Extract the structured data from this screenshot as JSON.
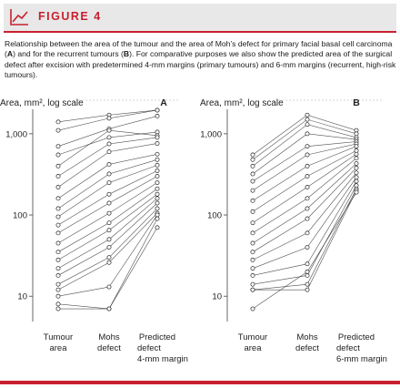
{
  "header": {
    "figure_label": "FIGURE 4"
  },
  "caption": {
    "part1": "Relationship between the area of the tumour and the area of Moh’s defect for primary facial basal cell carcinoma (",
    "a": "A",
    "part2": ") and for the recurrent tumours (",
    "b": "B",
    "part3": "). For comparative purposes we also show the predicted area of the surgical defect after excision with predetermined 4-mm margins (primary tumours) and 6-mm margins (recurrent, high-risk tumours)."
  },
  "colors": {
    "accent": "#c8202f",
    "banner_bg": "#e8e8e8",
    "line": "#333333"
  },
  "icons": {
    "banner": "chart-line-icon"
  },
  "chart_data": [
    {
      "type": "line",
      "panel_label": "A",
      "ylabel": "Area, mm², log scale",
      "yscale": "log",
      "ylim": [
        6,
        2000
      ],
      "yticks": [
        {
          "value": 10,
          "label": "10"
        },
        {
          "value": 100,
          "label": "100"
        },
        {
          "value": 1000,
          "label": "1,000"
        }
      ],
      "categories": [
        "Tumour area",
        "Mohs defect",
        "Predicted defect 4-mm margin"
      ],
      "category_label_lines": [
        [
          "Tumour",
          "area"
        ],
        [
          "Mohs",
          "defect"
        ],
        [
          "Predicted",
          "defect",
          "4-mm margin"
        ]
      ],
      "series": [
        {
          "values": [
            1400,
            1700,
            1950
          ]
        },
        {
          "values": [
            1100,
            1550,
            1950
          ]
        },
        {
          "values": [
            700,
            1150,
            1650
          ]
        },
        {
          "values": [
            550,
            900,
            1050
          ]
        },
        {
          "values": [
            400,
            1100,
            950
          ]
        },
        {
          "values": [
            300,
            750,
            900
          ]
        },
        {
          "values": [
            220,
            600,
            760
          ]
        },
        {
          "values": [
            160,
            420,
            560
          ]
        },
        {
          "values": [
            120,
            320,
            480
          ]
        },
        {
          "values": [
            95,
            250,
            410
          ]
        },
        {
          "values": [
            75,
            180,
            350
          ]
        },
        {
          "values": [
            60,
            140,
            300
          ]
        },
        {
          "values": [
            45,
            105,
            250
          ]
        },
        {
          "values": [
            35,
            80,
            210
          ]
        },
        {
          "values": [
            28,
            65,
            180
          ]
        },
        {
          "values": [
            22,
            50,
            160
          ]
        },
        {
          "values": [
            18,
            40,
            140
          ]
        },
        {
          "values": [
            14,
            30,
            120
          ]
        },
        {
          "values": [
            12,
            26,
            105
          ]
        },
        {
          "values": [
            10,
            13,
            100
          ]
        },
        {
          "values": [
            8,
            7,
            90
          ]
        },
        {
          "values": [
            7,
            7,
            70
          ]
        }
      ]
    },
    {
      "type": "line",
      "panel_label": "B",
      "ylabel": "Area, mm², log scale",
      "yscale": "log",
      "ylim": [
        6,
        2000
      ],
      "yticks": [
        {
          "value": 10,
          "label": "10"
        },
        {
          "value": 100,
          "label": "100"
        },
        {
          "value": 1000,
          "label": "1,000"
        }
      ],
      "categories": [
        "Tumour area",
        "Mohs defect",
        "Predicted defect 6-mm margin"
      ],
      "category_label_lines": [
        [
          "Tumour",
          "area"
        ],
        [
          "Mohs",
          "defect"
        ],
        [
          "Predicted",
          "defect",
          "6-mm margin"
        ]
      ],
      "series": [
        {
          "values": [
            550,
            1700,
            1100
          ]
        },
        {
          "values": [
            480,
            1500,
            1000
          ]
        },
        {
          "values": [
            400,
            1300,
            900
          ]
        },
        {
          "values": [
            320,
            1000,
            850
          ]
        },
        {
          "values": [
            260,
            700,
            800
          ]
        },
        {
          "values": [
            200,
            550,
            750
          ]
        },
        {
          "values": [
            150,
            400,
            700
          ]
        },
        {
          "values": [
            110,
            300,
            620
          ]
        },
        {
          "values": [
            80,
            220,
            560
          ]
        },
        {
          "values": [
            60,
            160,
            500
          ]
        },
        {
          "values": [
            45,
            120,
            430
          ]
        },
        {
          "values": [
            35,
            90,
            380
          ]
        },
        {
          "values": [
            28,
            60,
            330
          ]
        },
        {
          "values": [
            22,
            40,
            290
          ]
        },
        {
          "values": [
            18,
            25,
            260
          ]
        },
        {
          "values": [
            14,
            18,
            230
          ]
        },
        {
          "values": [
            12,
            14,
            210
          ]
        },
        {
          "values": [
            12,
            12,
            200
          ]
        },
        {
          "values": [
            7,
            20,
            190
          ]
        }
      ]
    }
  ]
}
